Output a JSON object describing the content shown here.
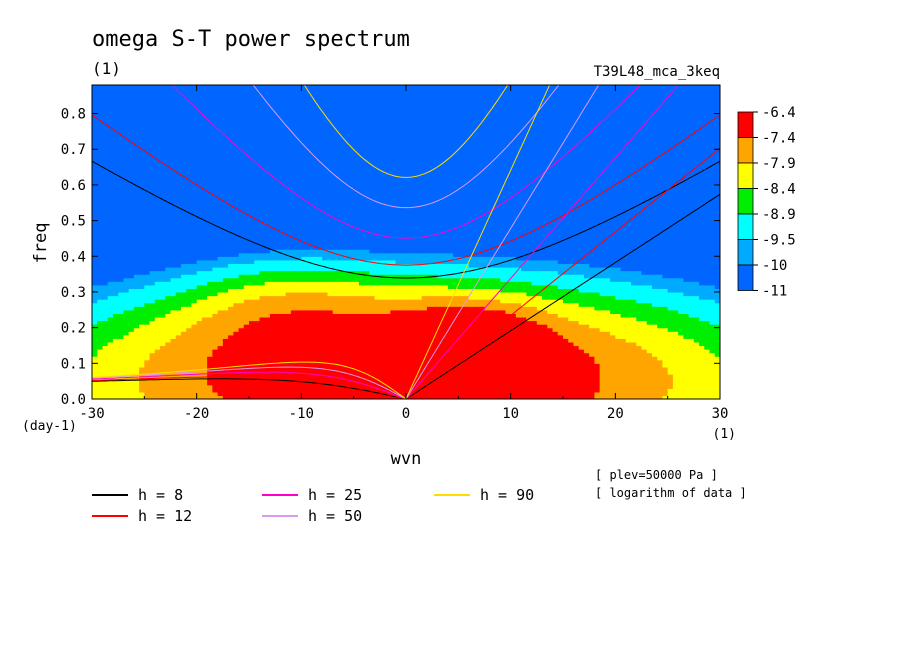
{
  "chart_data": {
    "type": "heatmap",
    "title": "omega S-T power spectrum",
    "subtitle": "(1)",
    "run_label": "T39L48_mca_3keq",
    "xlabel": "wvn",
    "ylabel": "freq",
    "x_unit": "(1)",
    "y_unit": "(day-1)",
    "xlim": [
      -30,
      30
    ],
    "ylim": [
      0,
      0.88
    ],
    "xticks": [
      -30,
      -20,
      -10,
      0,
      10,
      20,
      30
    ],
    "yticks": [
      0.0,
      0.1,
      0.2,
      0.3,
      0.4,
      0.5,
      0.6,
      0.7,
      0.8
    ],
    "ytick_labels": [
      "0.0",
      "0.1",
      "0.2",
      "0.3",
      "0.4",
      "0.5",
      "0.6",
      "0.7",
      "0.8"
    ],
    "colorbar": {
      "levels": [
        "-6.4",
        "-7.4",
        "-7.9",
        "-8.4",
        "-8.9",
        "-9.5",
        "-10",
        "-11"
      ],
      "colors": [
        "#ff0000",
        "#ffa500",
        "#ffff00",
        "#00ee00",
        "#00ffff",
        "#00aaff",
        "#0066ff"
      ]
    },
    "field_peak": {
      "x": 6,
      "y": 0.12,
      "value": -6.4
    },
    "dispersion_curves": [
      {
        "name": "h = 8",
        "h": 8,
        "color": "#000000"
      },
      {
        "name": "h = 12",
        "h": 12,
        "color": "#ff0000"
      },
      {
        "name": "h = 25",
        "h": 25,
        "color": "#ff00cc"
      },
      {
        "name": "h = 50",
        "h": 50,
        "color": "#dd99ee"
      },
      {
        "name": "h = 90",
        "h": 90,
        "color": "#ffdd00"
      }
    ],
    "notes": [
      "[ plev=50000 Pa ]",
      "[ logarithm of data ]"
    ]
  }
}
